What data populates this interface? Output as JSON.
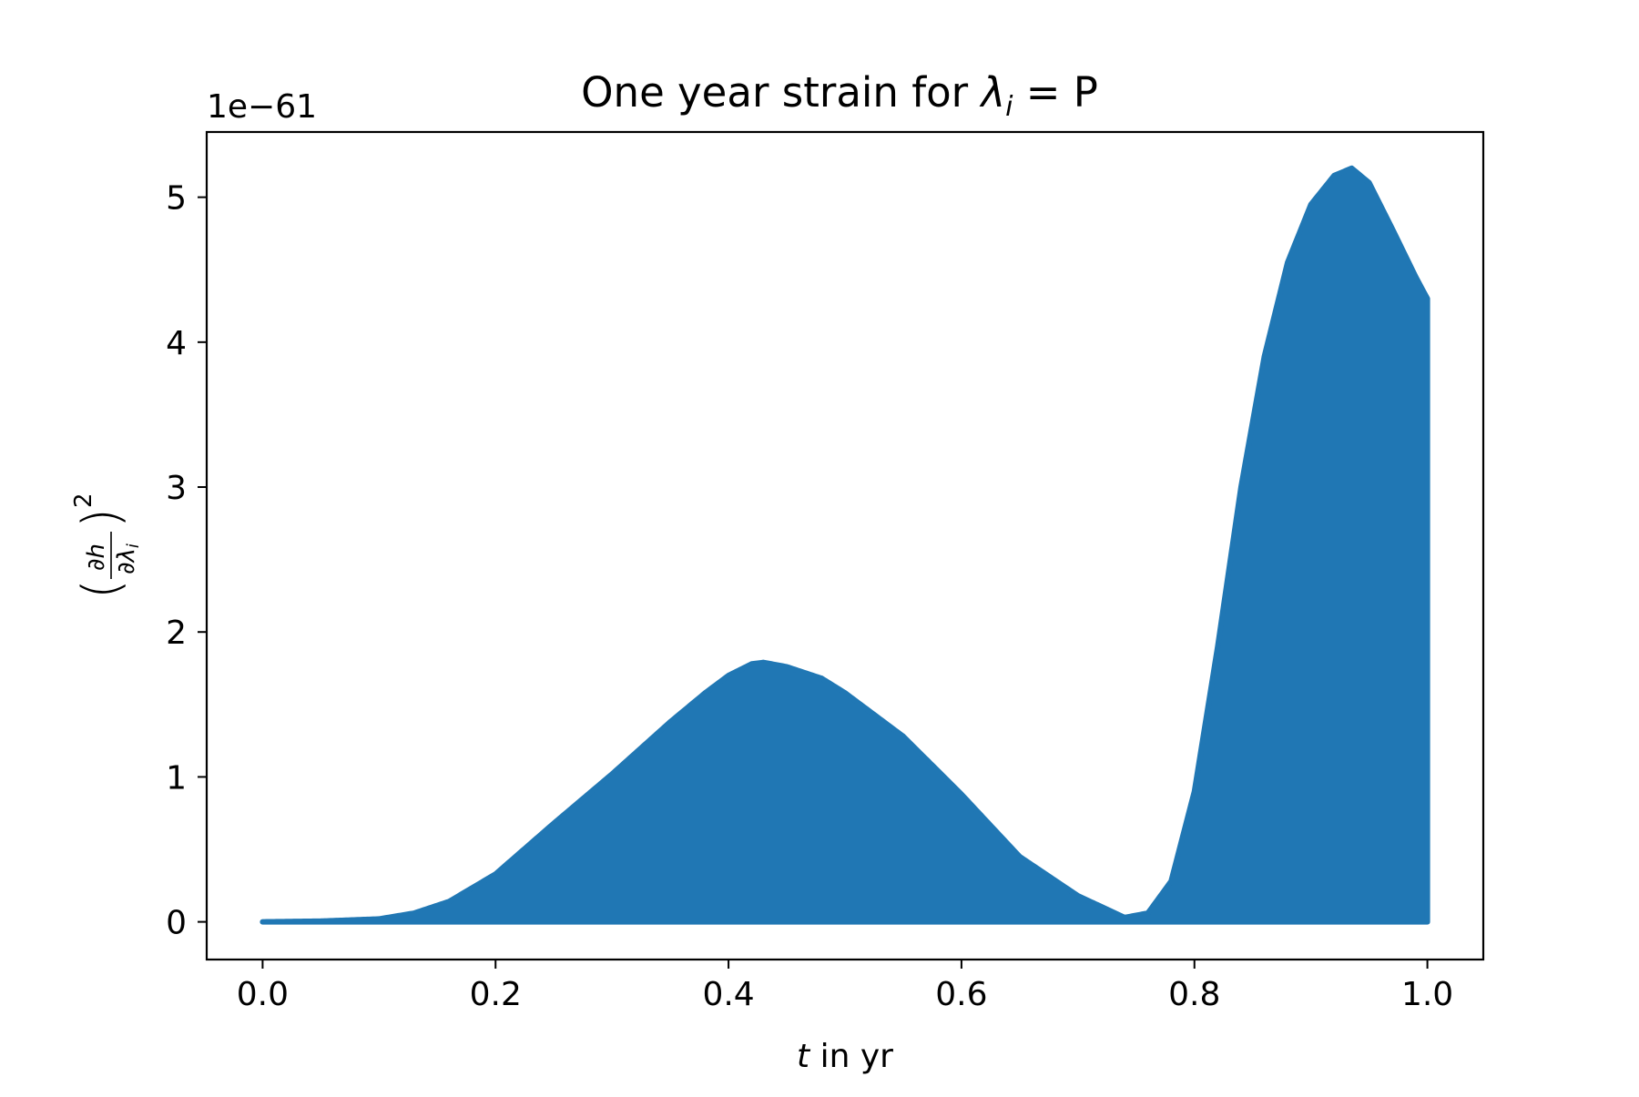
{
  "chart_data": {
    "type": "area",
    "title": "One year strain for λᵢ = P",
    "title_parts": {
      "prefix": "One year strain for ",
      "symbol": "λ",
      "subscript": "i",
      "suffix": " = P"
    },
    "xlabel": "t in yr",
    "xlabel_parts": {
      "var": "t",
      "rest": " in yr"
    },
    "ylabel": "(∂h/∂λᵢ)²",
    "ylabel_parts": {
      "numerator": "∂h",
      "denominator": "∂λ",
      "denominator_sub": "i",
      "power": "2"
    },
    "offset_text": "1e−61",
    "xlim": [
      -0.048,
      1.048
    ],
    "ylim": [
      -0.26,
      5.45
    ],
    "x_ticks": [
      0.0,
      0.2,
      0.4,
      0.6,
      0.8,
      1.0
    ],
    "x_tick_labels": [
      "0.0",
      "0.2",
      "0.4",
      "0.6",
      "0.8",
      "1.0"
    ],
    "y_ticks": [
      0,
      1,
      2,
      3,
      4,
      5
    ],
    "y_tick_labels": [
      "0",
      "1",
      "2",
      "3",
      "4",
      "5"
    ],
    "grid": false,
    "color": "#2077b4",
    "series": [
      {
        "description": "upper envelope of rapidly oscillating strain signal (lower envelope ≈ 0)",
        "x": [
          0.0,
          0.05,
          0.1,
          0.13,
          0.16,
          0.2,
          0.25,
          0.3,
          0.35,
          0.38,
          0.4,
          0.42,
          0.43,
          0.45,
          0.48,
          0.5,
          0.55,
          0.6,
          0.65,
          0.7,
          0.74,
          0.76,
          0.78,
          0.8,
          0.82,
          0.84,
          0.86,
          0.88,
          0.9,
          0.92,
          0.935,
          0.95,
          0.97,
          0.99,
          1.0
        ],
        "y": [
          0.0,
          0.005,
          0.02,
          0.06,
          0.14,
          0.33,
          0.68,
          1.02,
          1.38,
          1.58,
          1.7,
          1.78,
          1.79,
          1.76,
          1.68,
          1.58,
          1.28,
          0.88,
          0.45,
          0.18,
          0.03,
          0.06,
          0.28,
          0.9,
          1.9,
          3.0,
          3.9,
          4.55,
          4.95,
          5.15,
          5.2,
          5.1,
          4.78,
          4.45,
          4.3
        ]
      }
    ]
  }
}
